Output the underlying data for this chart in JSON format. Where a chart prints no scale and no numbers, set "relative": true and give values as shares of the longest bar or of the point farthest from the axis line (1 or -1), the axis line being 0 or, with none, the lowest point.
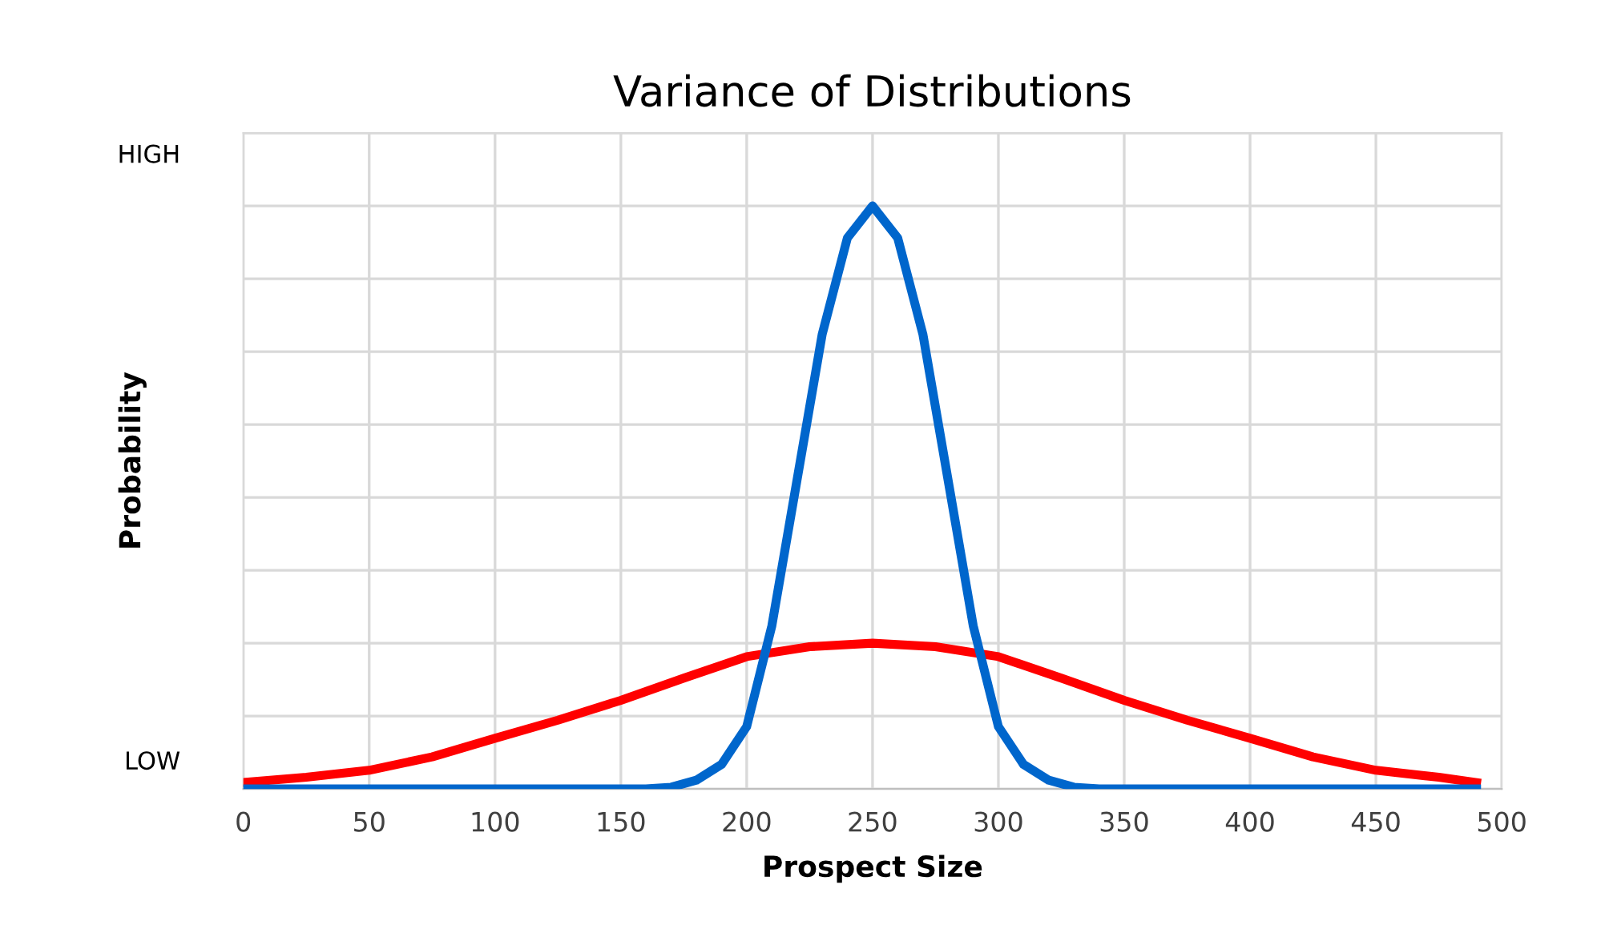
{
  "chart_data": {
    "type": "line",
    "title": "Variance of Distributions",
    "xlabel": "Prospect Size",
    "ylabel": "Probability",
    "annotations": [
      "HIGH",
      "LOW"
    ],
    "relative": true,
    "grid": true,
    "marker": "none",
    "line_style": "solid",
    "xlim": [
      0,
      500
    ],
    "xticks": [
      0,
      50,
      100,
      150,
      200,
      250,
      300,
      350,
      400,
      450,
      500
    ],
    "series": [
      {
        "color": "#ff0000",
        "x": [
          0,
          25,
          50,
          75,
          100,
          125,
          150,
          175,
          200,
          225,
          250,
          275,
          300,
          325,
          350,
          375,
          400,
          425,
          450,
          475,
          490
        ],
        "values": [
          0.011,
          0.02,
          0.032,
          0.055,
          0.087,
          0.118,
          0.152,
          0.19,
          0.227,
          0.244,
          0.25,
          0.244,
          0.227,
          0.19,
          0.152,
          0.118,
          0.087,
          0.055,
          0.032,
          0.02,
          0.011
        ]
      },
      {
        "color": "#0066cc",
        "x": [
          0,
          150,
          160,
          170,
          180,
          190,
          200,
          210,
          220,
          230,
          240,
          250,
          260,
          270,
          280,
          290,
          300,
          310,
          320,
          330,
          340,
          350,
          490
        ],
        "values": [
          0,
          0,
          0,
          0.003,
          0.015,
          0.042,
          0.107,
          0.28,
          0.53,
          0.78,
          0.945,
          1,
          0.945,
          0.78,
          0.53,
          0.28,
          0.107,
          0.042,
          0.015,
          0.003,
          0,
          0,
          0
        ]
      }
    ]
  }
}
